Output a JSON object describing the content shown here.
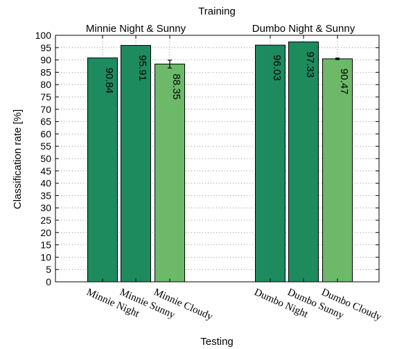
{
  "chart_data": {
    "type": "bar",
    "title": "Training",
    "xlabel": "Testing",
    "ylabel": "Classification rate [%]",
    "ylim": [
      0,
      100
    ],
    "yticks": [
      0,
      5,
      10,
      15,
      20,
      25,
      30,
      35,
      40,
      45,
      50,
      55,
      60,
      65,
      70,
      75,
      80,
      85,
      90,
      95,
      100
    ],
    "grid": true,
    "groups": [
      {
        "label": "Minnie Night & Sunny"
      },
      {
        "label": "Dumbo Night & Sunny"
      }
    ],
    "categories": [
      "Minnie Night",
      "Minnie Sunny",
      "Minnie Cloudy",
      "Dumbo Night",
      "Dumbo Sunny",
      "Dumbo Cloudy"
    ],
    "values": [
      90.84,
      95.91,
      88.35,
      96.03,
      97.33,
      90.47
    ],
    "value_labels": [
      "90.84",
      "95.91",
      "88.35",
      "96.03",
      "97.33",
      "90.47"
    ],
    "error": [
      null,
      null,
      1.6,
      null,
      null,
      0.3
    ],
    "bar_colors": [
      "#1e8b5f",
      "#1e8b5f",
      "#6cb96a",
      "#1e8b5f",
      "#1e8b5f",
      "#6cb96a"
    ]
  }
}
